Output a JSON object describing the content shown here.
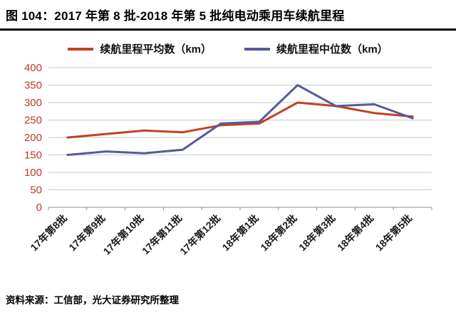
{
  "header": {
    "title": "图 104：2017 年第 8 批-2018 年第 5 批纯电动乘用车续航里程"
  },
  "legend": [
    {
      "label": "续航里程平均数（km）",
      "color": "#c54022"
    },
    {
      "label": "续航里程中位数（km）",
      "color": "#575a9c"
    }
  ],
  "footer": {
    "source": "资料来源：工信部，光大证券研究所整理"
  },
  "chart_data": {
    "type": "line",
    "title": "2017年第8批-2018年第5批纯电动乘用车续航里程",
    "categories": [
      "17年第8批",
      "17年第9批",
      "17年第10批",
      "17年第11批",
      "17年第12批",
      "18年第1批",
      "18年第2批",
      "18年第3批",
      "18年第4批",
      "18年第5批"
    ],
    "series": [
      {
        "name": "续航里程平均数（km）",
        "color": "#c54022",
        "values": [
          200,
          210,
          220,
          215,
          235,
          240,
          300,
          290,
          270,
          260
        ]
      },
      {
        "name": "续航里程中位数（km）",
        "color": "#575a9c",
        "values": [
          150,
          160,
          155,
          165,
          240,
          245,
          350,
          290,
          295,
          255
        ]
      }
    ],
    "xlabel": "",
    "ylabel": "",
    "ylim": [
      0,
      400
    ],
    "ytick_step": 50,
    "grid": true,
    "legend_position": "top",
    "axis_style": {
      "ytick_color": "#c0392b",
      "xtick_color": "#1a1a1a",
      "gridline_color": "#c9c9c9",
      "axis_color": "#8c8c8c"
    }
  }
}
